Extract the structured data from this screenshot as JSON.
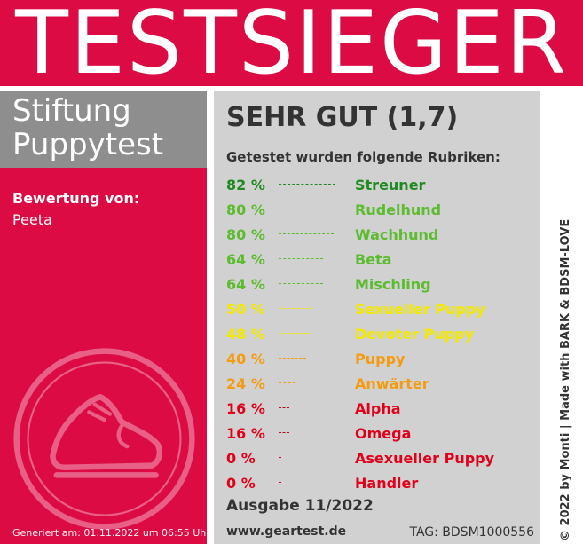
{
  "banner": {
    "title": "TESTSIEGER"
  },
  "brand": {
    "line1": "Stiftung",
    "line2": "Puppytest"
  },
  "rating": {
    "label": "Bewertung von:",
    "name": "Peeta"
  },
  "generated": "Generiert am: 01.11.2022 um 06:55 Uhr",
  "grade": "SEHR GUT (1,7)",
  "categories_heading": "Getestet wurden folgende Rubriken:",
  "categories": [
    {
      "percent": "82 %",
      "value": 82,
      "name": "Streuner",
      "color": "#1f8a1f"
    },
    {
      "percent": "80 %",
      "value": 80,
      "name": "Rudelhund",
      "color": "#5dbb2f"
    },
    {
      "percent": "80 %",
      "value": 80,
      "name": "Wachhund",
      "color": "#5dbb2f"
    },
    {
      "percent": "64 %",
      "value": 64,
      "name": "Beta",
      "color": "#5dbb2f"
    },
    {
      "percent": "64 %",
      "value": 64,
      "name": "Mischling",
      "color": "#5dbb2f"
    },
    {
      "percent": "50 %",
      "value": 50,
      "name": "Sexueller Puppy",
      "color": "#f3ea00"
    },
    {
      "percent": "48 %",
      "value": 48,
      "name": "Devoter Puppy",
      "color": "#f3ea00"
    },
    {
      "percent": "40 %",
      "value": 40,
      "name": "Puppy",
      "color": "#f39c12"
    },
    {
      "percent": "24 %",
      "value": 24,
      "name": "Anwärter",
      "color": "#f39c12"
    },
    {
      "percent": "16 %",
      "value": 16,
      "name": "Alpha",
      "color": "#e0001a"
    },
    {
      "percent": "16 %",
      "value": 16,
      "name": "Omega",
      "color": "#e0001a"
    },
    {
      "percent": "0 %",
      "value": 0,
      "name": "Asexueller Puppy",
      "color": "#e0001a"
    },
    {
      "percent": "0 %",
      "value": 0,
      "name": "Handler",
      "color": "#e0001a"
    }
  ],
  "edition": "Ausgabe 11/2022",
  "website": "www.geartest.de",
  "tag": "TAG: BDSM1000556",
  "credit": "© 2022 by Monti | Made with BARK & BDSM-LOVE",
  "colors": {
    "accent": "#dc0b44",
    "panel_gray": "#d1d1d1",
    "brand_gray": "#8e8e8e"
  },
  "icons": {
    "emblem": "shoe-icon"
  }
}
